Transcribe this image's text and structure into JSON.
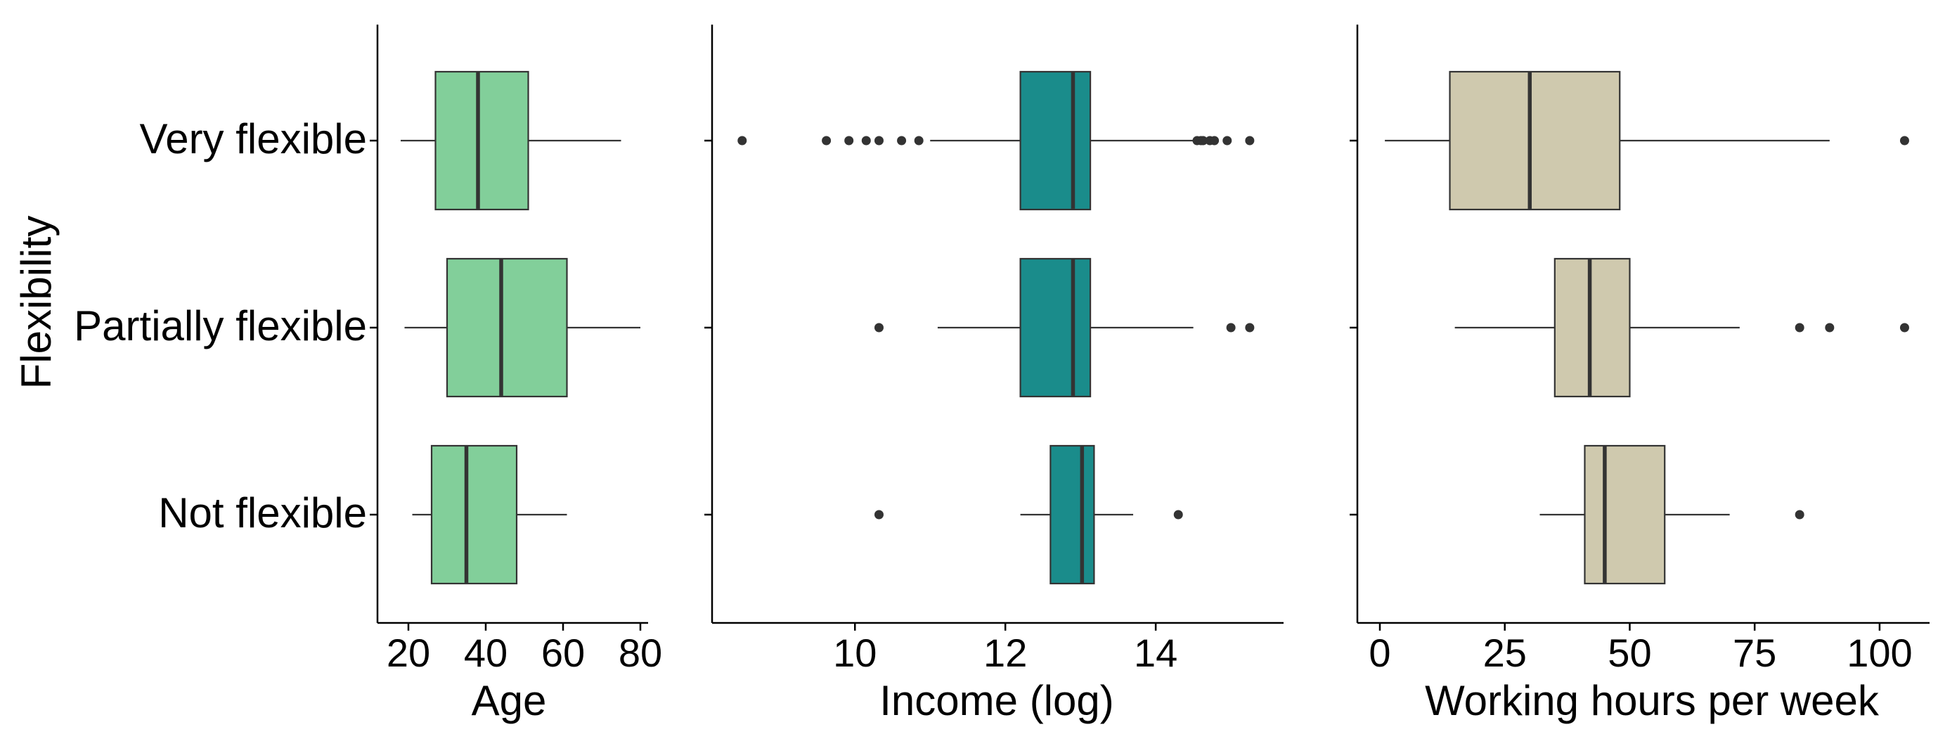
{
  "y_title": "Flexibility",
  "categories": [
    "Very flexible",
    "Partially flexible",
    "Not flexible"
  ],
  "chart_data": [
    {
      "type": "box",
      "panel": "age",
      "xlabel": "Age",
      "xlim": [
        12,
        82
      ],
      "xticks": [
        20,
        40,
        60,
        80
      ],
      "color": "#82CF9A",
      "categories": [
        "Very flexible",
        "Partially flexible",
        "Not flexible"
      ],
      "boxes": [
        {
          "category": "Very flexible",
          "whisker_low": 18,
          "q1": 27,
          "median": 38,
          "q3": 51,
          "whisker_high": 75,
          "outliers": []
        },
        {
          "category": "Partially flexible",
          "whisker_low": 19,
          "q1": 30,
          "median": 44,
          "q3": 61,
          "whisker_high": 80,
          "outliers": []
        },
        {
          "category": "Not flexible",
          "whisker_low": 21,
          "q1": 26,
          "median": 35,
          "q3": 48,
          "whisker_high": 61,
          "outliers": []
        }
      ]
    },
    {
      "type": "box",
      "panel": "income",
      "xlabel": "Income (log)",
      "xlim": [
        8.1,
        15.7
      ],
      "xticks": [
        10,
        12,
        14
      ],
      "color": "#1A8C8B",
      "categories": [
        "Very flexible",
        "Partially flexible",
        "Not flexible"
      ],
      "boxes": [
        {
          "category": "Very flexible",
          "whisker_low": 11.0,
          "q1": 12.2,
          "median": 12.9,
          "q3": 13.13,
          "whisker_high": 14.5,
          "outliers": [
            8.5,
            9.62,
            9.92,
            10.15,
            10.32,
            10.62,
            10.85,
            14.55,
            14.6,
            14.63,
            14.72,
            14.78,
            14.95,
            15.25
          ]
        },
        {
          "category": "Partially flexible",
          "whisker_low": 11.1,
          "q1": 12.2,
          "median": 12.9,
          "q3": 13.13,
          "whisker_high": 14.5,
          "outliers": [
            10.32,
            15.0,
            15.25
          ]
        },
        {
          "category": "Not flexible",
          "whisker_low": 12.2,
          "q1": 12.6,
          "median": 13.02,
          "q3": 13.18,
          "whisker_high": 13.7,
          "outliers": [
            10.32,
            14.3
          ]
        }
      ]
    },
    {
      "type": "box",
      "panel": "hours",
      "xlabel": "Working hours per week",
      "xlim": [
        -4.5,
        110
      ],
      "xticks": [
        0,
        25,
        50,
        75,
        100
      ],
      "color": "#CFC9AE",
      "categories": [
        "Very flexible",
        "Partially flexible",
        "Not flexible"
      ],
      "boxes": [
        {
          "category": "Very flexible",
          "whisker_low": 1,
          "q1": 14,
          "median": 30,
          "q3": 48,
          "whisker_high": 90,
          "outliers": [
            105
          ]
        },
        {
          "category": "Partially flexible",
          "whisker_low": 15,
          "q1": 35,
          "median": 42,
          "q3": 50,
          "whisker_high": 72,
          "outliers": [
            84,
            90,
            105
          ]
        },
        {
          "category": "Not flexible",
          "whisker_low": 32,
          "q1": 41,
          "median": 45,
          "q3": 57,
          "whisker_high": 70,
          "outliers": [
            84
          ]
        }
      ]
    }
  ]
}
